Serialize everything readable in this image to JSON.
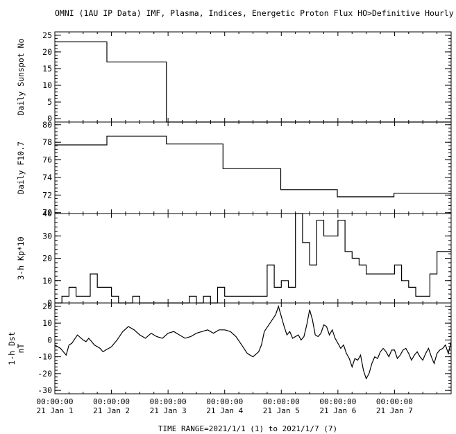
{
  "title": "OMNI (1AU IP Data)  IMF, Plasma, Indices, Energetic Proton Flux  HO>Definitive Hourly",
  "time_range": "TIME RANGE=2021/1/1 (1) to 2021/1/7 (7)",
  "x_ticks": [
    {
      "x": 0,
      "line1": "00:00:00",
      "line2": "21 Jan  1"
    },
    {
      "x": 1,
      "line1": "00:00:00",
      "line2": "21 Jan  2"
    },
    {
      "x": 2,
      "line1": "00:00:00",
      "line2": "21 Jan  3"
    },
    {
      "x": 3,
      "line1": "00:00:00",
      "line2": "21 Jan  4"
    },
    {
      "x": 4,
      "line1": "00:00:00",
      "line2": "21 Jan  5"
    },
    {
      "x": 5,
      "line1": "00:00:00",
      "line2": "21 Jan  6"
    },
    {
      "x": 6,
      "line1": "00:00:00",
      "line2": "21 Jan  7"
    }
  ],
  "chart_data": [
    {
      "type": "line",
      "ylabel": [
        "Daily Sunspot No"
      ],
      "ylim": [
        -1,
        26
      ],
      "yticks": [
        0,
        5,
        10,
        15,
        20,
        25
      ],
      "minor_step": 1,
      "xlim": [
        0,
        7
      ],
      "series": [
        {
          "step": true,
          "x": [
            0,
            0.92,
            0.92,
            1.0,
            1.97,
            1.97,
            7.0
          ],
          "y": [
            23,
            23,
            17,
            17,
            17,
            -1,
            -1
          ]
        }
      ]
    },
    {
      "type": "line",
      "ylabel": [
        "Daily F10.7"
      ],
      "ylim": [
        69.9,
        80.3
      ],
      "yticks": [
        70,
        72,
        74,
        76,
        78,
        80
      ],
      "minor_step": 0.4,
      "xlim": [
        0,
        7
      ],
      "series": [
        {
          "step": true,
          "x": [
            0,
            0.92,
            0.92,
            1.97,
            1.97,
            2.97,
            2.97,
            3.99,
            3.99,
            4.99,
            4.99,
            5.99,
            5.99,
            7.0
          ],
          "y": [
            77.7,
            77.7,
            78.7,
            78.7,
            77.8,
            77.8,
            75.0,
            75.0,
            72.6,
            72.6,
            71.8,
            71.8,
            72.2,
            72.2
          ]
        }
      ]
    },
    {
      "type": "line",
      "ylabel": [
        "3-h Kp*10"
      ],
      "ylim": [
        0,
        40
      ],
      "yticks": [
        0,
        10,
        20,
        30,
        40
      ],
      "minor_step": 2,
      "xlim": [
        0,
        7
      ],
      "series": [
        {
          "step": true,
          "x": [
            0,
            0.125,
            0.25,
            0.375,
            0.5,
            0.625,
            0.75,
            0.875,
            1.0,
            1.125,
            1.25,
            1.375,
            1.5,
            1.625,
            1.75,
            1.875,
            2.0,
            2.125,
            2.25,
            2.375,
            2.5,
            2.625,
            2.75,
            2.875,
            3.0,
            3.125,
            3.25,
            3.375,
            3.5,
            3.625,
            3.75,
            3.875,
            4.0,
            4.125,
            4.25,
            4.375,
            4.5,
            4.625,
            4.75,
            4.875,
            5.0,
            5.125,
            5.25,
            5.375,
            5.5,
            5.625,
            5.75,
            5.875,
            6.0,
            6.125,
            6.25,
            6.375,
            6.5,
            6.625,
            6.75,
            6.875,
            7.0
          ],
          "y": [
            0,
            3,
            7,
            3,
            3,
            13,
            7,
            7,
            3,
            0,
            0,
            3,
            0,
            0,
            0,
            0,
            0,
            0,
            0,
            3,
            0,
            3,
            0,
            7,
            3,
            3,
            3,
            3,
            3,
            3,
            17,
            7,
            10,
            7,
            40,
            27,
            17,
            37,
            30,
            30,
            37,
            23,
            20,
            17,
            13,
            13,
            13,
            13,
            17,
            10,
            7,
            3,
            3,
            13,
            23,
            23,
            23
          ]
        }
      ]
    },
    {
      "type": "line",
      "ylabel": [
        "1-h Dst",
        "nT"
      ],
      "ylim": [
        -32,
        22
      ],
      "yticks": [
        -30,
        -20,
        -10,
        0,
        10,
        20
      ],
      "minor_step": 2,
      "xlim": [
        0,
        7
      ],
      "series": [
        {
          "step": false,
          "x": [
            0,
            0.1,
            0.2,
            0.25,
            0.3,
            0.4,
            0.5,
            0.55,
            0.6,
            0.7,
            0.8,
            0.85,
            0.9,
            1.0,
            1.1,
            1.2,
            1.3,
            1.4,
            1.5,
            1.6,
            1.7,
            1.8,
            1.9,
            2.0,
            2.1,
            2.2,
            2.3,
            2.4,
            2.5,
            2.6,
            2.7,
            2.8,
            2.9,
            3.0,
            3.1,
            3.2,
            3.3,
            3.4,
            3.5,
            3.6,
            3.65,
            3.7,
            3.8,
            3.9,
            3.95,
            4.0,
            4.05,
            4.1,
            4.15,
            4.2,
            4.3,
            4.35,
            4.4,
            4.45,
            4.5,
            4.55,
            4.6,
            4.65,
            4.7,
            4.75,
            4.8,
            4.85,
            4.9,
            4.95,
            5.0,
            5.05,
            5.1,
            5.15,
            5.2,
            5.25,
            5.3,
            5.35,
            5.4,
            5.45,
            5.5,
            5.55,
            5.6,
            5.65,
            5.7,
            5.75,
            5.8,
            5.85,
            5.9,
            5.95,
            6.0,
            6.05,
            6.1,
            6.15,
            6.2,
            6.25,
            6.3,
            6.35,
            6.4,
            6.45,
            6.5,
            6.55,
            6.6,
            6.65,
            6.7,
            6.75,
            6.8,
            6.85,
            6.9,
            6.95,
            7.0
          ],
          "y": [
            -3,
            -5,
            -9,
            -3,
            -2,
            3,
            0,
            -1,
            1,
            -3,
            -5,
            -7,
            -6,
            -4,
            0,
            5,
            8,
            6,
            3,
            1,
            4,
            2,
            1,
            4,
            5,
            3,
            1,
            2,
            4,
            5,
            6,
            4,
            6,
            6,
            5,
            2,
            -3,
            -8,
            -10,
            -7,
            -3,
            5,
            10,
            15,
            20,
            14,
            8,
            3,
            5,
            1,
            3,
            0,
            2,
            9,
            18,
            12,
            3,
            2,
            4,
            9,
            8,
            3,
            6,
            1,
            -2,
            -5,
            -3,
            -8,
            -11,
            -16,
            -11,
            -12,
            -9,
            -18,
            -23,
            -20,
            -14,
            -10,
            -11,
            -7,
            -5,
            -7,
            -10,
            -6,
            -6,
            -11,
            -9,
            -6,
            -5,
            -8,
            -12,
            -9,
            -7,
            -10,
            -12,
            -8,
            -5,
            -10,
            -14,
            -8,
            -6,
            -5,
            -3,
            -8,
            -1
          ]
        }
      ]
    }
  ]
}
